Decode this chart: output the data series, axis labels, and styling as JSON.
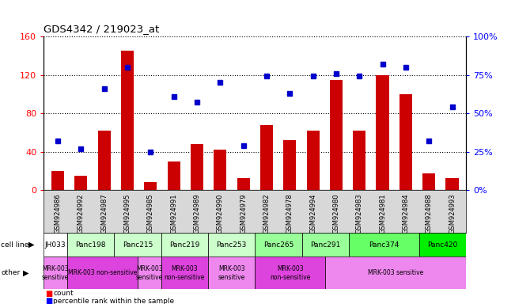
{
  "title": "GDS4342 / 219023_at",
  "samples": [
    "GSM924986",
    "GSM924992",
    "GSM924987",
    "GSM924995",
    "GSM924985",
    "GSM924991",
    "GSM924989",
    "GSM924990",
    "GSM924979",
    "GSM924982",
    "GSM924978",
    "GSM924994",
    "GSM924980",
    "GSM924983",
    "GSM924981",
    "GSM924984",
    "GSM924988",
    "GSM924993"
  ],
  "bar_values": [
    20,
    15,
    62,
    145,
    8,
    30,
    48,
    42,
    12,
    68,
    52,
    62,
    115,
    62,
    120,
    100,
    17,
    12
  ],
  "dot_values": [
    32,
    27,
    66,
    80,
    25,
    61,
    57,
    70,
    29,
    74,
    63,
    74,
    76,
    74,
    82,
    80,
    32,
    54
  ],
  "ylim_left": [
    0,
    160
  ],
  "ylim_right": [
    0,
    100
  ],
  "yticks_left": [
    0,
    40,
    80,
    120,
    160
  ],
  "ytick_labels_right": [
    "0%",
    "25%",
    "50%",
    "75%",
    "100%"
  ],
  "yticks_right": [
    0,
    25,
    50,
    75,
    100
  ],
  "bar_color": "#cc0000",
  "dot_color": "#0000cc",
  "cell_line_spans": [
    {
      "name": "JH033",
      "start": 0,
      "end": 0,
      "color": "#ffffff"
    },
    {
      "name": "Panc198",
      "start": 1,
      "end": 2,
      "color": "#ccffcc"
    },
    {
      "name": "Panc215",
      "start": 3,
      "end": 4,
      "color": "#ccffcc"
    },
    {
      "name": "Panc219",
      "start": 5,
      "end": 6,
      "color": "#ccffcc"
    },
    {
      "name": "Panc253",
      "start": 7,
      "end": 8,
      "color": "#ccffcc"
    },
    {
      "name": "Panc265",
      "start": 9,
      "end": 10,
      "color": "#99ff99"
    },
    {
      "name": "Panc291",
      "start": 11,
      "end": 12,
      "color": "#99ff99"
    },
    {
      "name": "Panc374",
      "start": 13,
      "end": 15,
      "color": "#66ff66"
    },
    {
      "name": "Panc420",
      "start": 16,
      "end": 17,
      "color": "#00ee00"
    }
  ],
  "other_spans": [
    {
      "label": "MRK-003\nsensitive",
      "start": 0,
      "end": 0,
      "color": "#ee88ee"
    },
    {
      "label": "MRK-003 non-sensitive",
      "start": 1,
      "end": 3,
      "color": "#dd44dd"
    },
    {
      "label": "MRK-003\nsensitive",
      "start": 4,
      "end": 4,
      "color": "#ee88ee"
    },
    {
      "label": "MRK-003\nnon-sensitive",
      "start": 5,
      "end": 6,
      "color": "#dd44dd"
    },
    {
      "label": "MRK-003\nsensitive",
      "start": 7,
      "end": 8,
      "color": "#ee88ee"
    },
    {
      "label": "MRK-003\nnon-sensitive",
      "start": 9,
      "end": 11,
      "color": "#dd44dd"
    },
    {
      "label": "MRK-003 sensitive",
      "start": 12,
      "end": 17,
      "color": "#ee88ee"
    }
  ]
}
